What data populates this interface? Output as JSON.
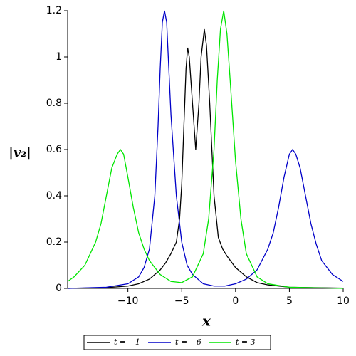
{
  "chart_data": {
    "type": "line",
    "xlabel": "x",
    "ylabel": "|v₂|",
    "xlim": [
      -15.6,
      10
    ],
    "ylim": [
      0,
      1.2
    ],
    "xticks": [
      {
        "value": -10,
        "label": "−10"
      },
      {
        "value": -5,
        "label": "−5"
      },
      0,
      5,
      10
    ],
    "yticks": [
      0,
      0.2,
      0.4,
      0.6,
      0.8,
      1,
      1.2
    ],
    "legend": "bottom",
    "series": [
      {
        "name": "t = −1",
        "color": "#000000",
        "x": [
          -15.6,
          -12,
          -10,
          -9,
          -8,
          -7,
          -6.5,
          -6,
          -5.5,
          -5.2,
          -5,
          -4.8,
          -4.6,
          -4.45,
          -4.3,
          -4,
          -3.7,
          -3.4,
          -3.2,
          -2.9,
          -2.7,
          -2.4,
          -2,
          -1.6,
          -1.2,
          -0.8,
          0,
          1,
          2,
          3,
          5,
          10
        ],
        "values": [
          0,
          0.003,
          0.01,
          0.02,
          0.04,
          0.08,
          0.11,
          0.15,
          0.2,
          0.3,
          0.45,
          0.7,
          0.95,
          1.04,
          1.0,
          0.8,
          0.6,
          0.8,
          1.0,
          1.12,
          1.05,
          0.8,
          0.4,
          0.22,
          0.17,
          0.14,
          0.09,
          0.05,
          0.025,
          0.015,
          0.005,
          0.001
        ]
      },
      {
        "name": "t = −6",
        "color": "#0000c8",
        "x": [
          -15.6,
          -12,
          -10,
          -9,
          -8.5,
          -8,
          -7.5,
          -7.2,
          -7,
          -6.8,
          -6.6,
          -6.4,
          -6.2,
          -6,
          -5.5,
          -5,
          -4.5,
          -4,
          -3,
          -2,
          -1,
          0,
          1,
          2,
          3,
          3.5,
          4,
          4.5,
          5,
          5.3,
          5.6,
          6,
          6.5,
          7,
          7.5,
          8,
          9,
          10
        ],
        "values": [
          0,
          0.005,
          0.02,
          0.05,
          0.09,
          0.17,
          0.4,
          0.7,
          0.95,
          1.15,
          1.2,
          1.15,
          0.95,
          0.75,
          0.4,
          0.2,
          0.1,
          0.06,
          0.02,
          0.01,
          0.01,
          0.02,
          0.04,
          0.08,
          0.17,
          0.24,
          0.35,
          0.48,
          0.58,
          0.6,
          0.58,
          0.52,
          0.4,
          0.28,
          0.19,
          0.12,
          0.06,
          0.03
        ]
      },
      {
        "name": "t = 3",
        "color": "#00e600",
        "x": [
          -15.6,
          -15,
          -14,
          -13,
          -12.5,
          -12,
          -11.5,
          -11,
          -10.7,
          -10.4,
          -10,
          -9.5,
          -9,
          -8.5,
          -8,
          -7,
          -6,
          -5,
          -4,
          -3,
          -2.5,
          -2,
          -1.7,
          -1.4,
          -1.1,
          -0.8,
          -0.5,
          0,
          0.5,
          1,
          2,
          3,
          5,
          10
        ],
        "values": [
          0.03,
          0.05,
          0.1,
          0.2,
          0.28,
          0.4,
          0.52,
          0.58,
          0.6,
          0.58,
          0.48,
          0.35,
          0.24,
          0.17,
          0.12,
          0.06,
          0.03,
          0.025,
          0.05,
          0.15,
          0.3,
          0.6,
          0.9,
          1.12,
          1.2,
          1.1,
          0.9,
          0.55,
          0.3,
          0.15,
          0.05,
          0.02,
          0.005,
          0
        ]
      }
    ]
  }
}
